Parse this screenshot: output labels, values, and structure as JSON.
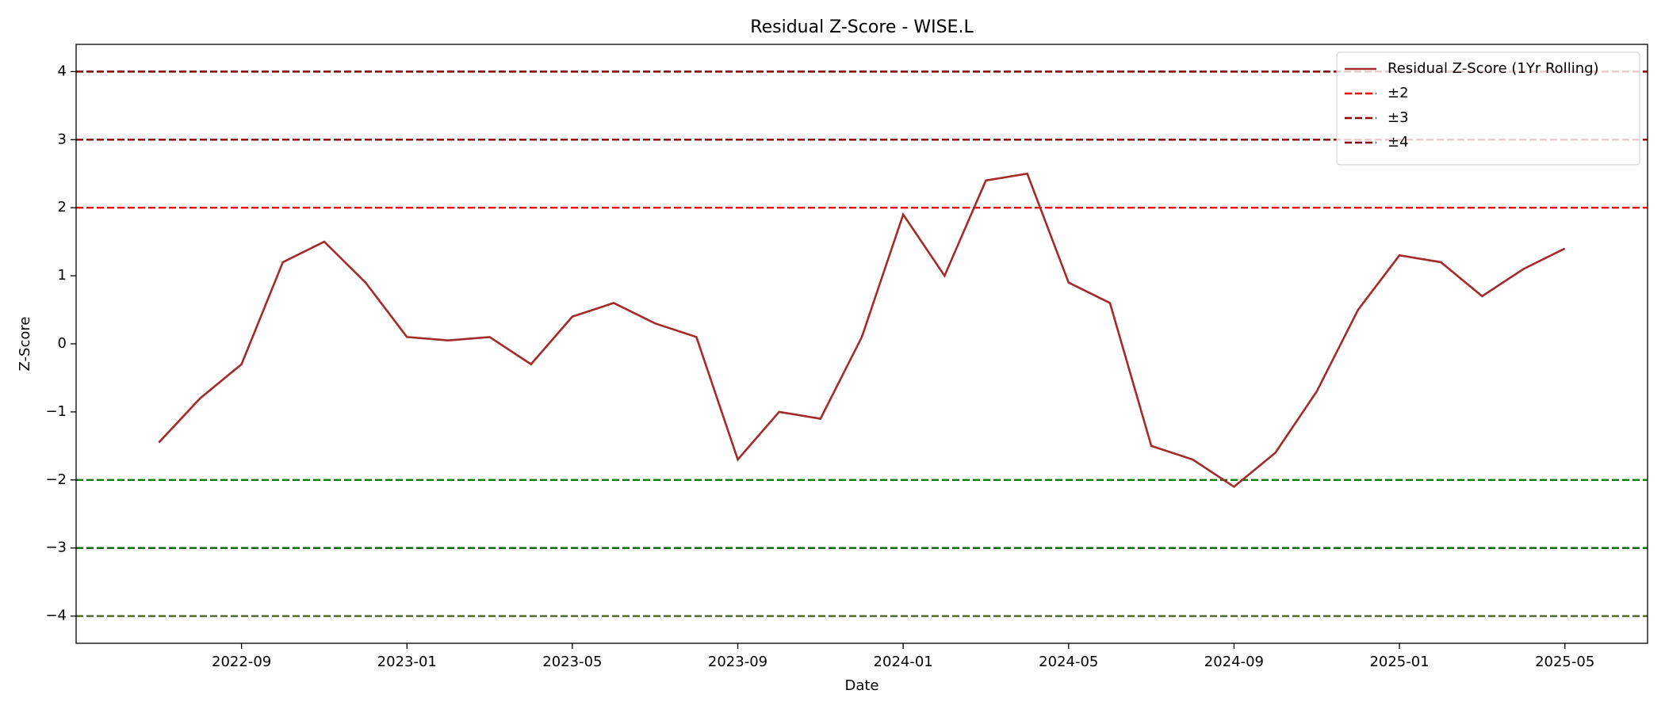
{
  "chart_data": {
    "type": "line",
    "title": "Residual Z-Score - WISE.L",
    "x_label": "Date",
    "y_label": "Z-Score",
    "x": [
      "2022-07",
      "2022-08",
      "2022-09",
      "2022-10",
      "2022-11",
      "2022-12",
      "2023-01",
      "2023-02",
      "2023-03",
      "2023-04",
      "2023-05",
      "2023-06",
      "2023-07",
      "2023-08",
      "2023-09",
      "2023-10",
      "2023-11",
      "2023-12",
      "2024-01",
      "2024-02",
      "2024-03",
      "2024-04",
      "2024-05",
      "2024-06",
      "2024-07",
      "2024-08",
      "2024-09",
      "2024-10",
      "2024-11",
      "2024-12",
      "2025-01",
      "2025-02",
      "2025-03",
      "2025-04",
      "2025-05"
    ],
    "series": [
      {
        "name": "Residual Z-Score (1Yr Rolling)",
        "color": "#a52a2a",
        "values": [
          -1.45,
          -0.8,
          -0.3,
          1.2,
          1.5,
          0.9,
          0.1,
          0.05,
          0.1,
          -0.3,
          0.4,
          0.6,
          0.3,
          0.1,
          -1.7,
          -1.0,
          -1.1,
          0.1,
          1.9,
          1.0,
          2.4,
          2.5,
          0.9,
          0.6,
          -1.5,
          -1.7,
          -2.1,
          -1.6,
          -0.7,
          0.5,
          1.3,
          1.2,
          0.7,
          1.1,
          1.4
        ]
      }
    ],
    "reference_lines": [
      {
        "name": "±2",
        "values": [
          2,
          -2
        ],
        "colors": [
          "red",
          "green"
        ]
      },
      {
        "name": "±3",
        "values": [
          3,
          -3
        ],
        "colors": [
          "darkred",
          "darkgreen"
        ]
      },
      {
        "name": "±4",
        "values": [
          4,
          -4
        ],
        "colors": [
          "maroon",
          "darkolivegreen"
        ]
      }
    ],
    "xlim": [
      "2022-05",
      "2025-07"
    ],
    "xticks": [
      "2022-09",
      "2023-01",
      "2023-05",
      "2023-09",
      "2024-01",
      "2024-05",
      "2024-09",
      "2025-01",
      "2025-05"
    ],
    "ylim": [
      -4.4,
      4.4
    ],
    "yticks": [
      {
        "value": -4,
        "label": "−4"
      },
      {
        "value": -3,
        "label": "−3"
      },
      {
        "value": -2,
        "label": "−2"
      },
      {
        "value": -1,
        "label": "−1"
      },
      0,
      1,
      2,
      3,
      4
    ],
    "legend": "upper right"
  }
}
